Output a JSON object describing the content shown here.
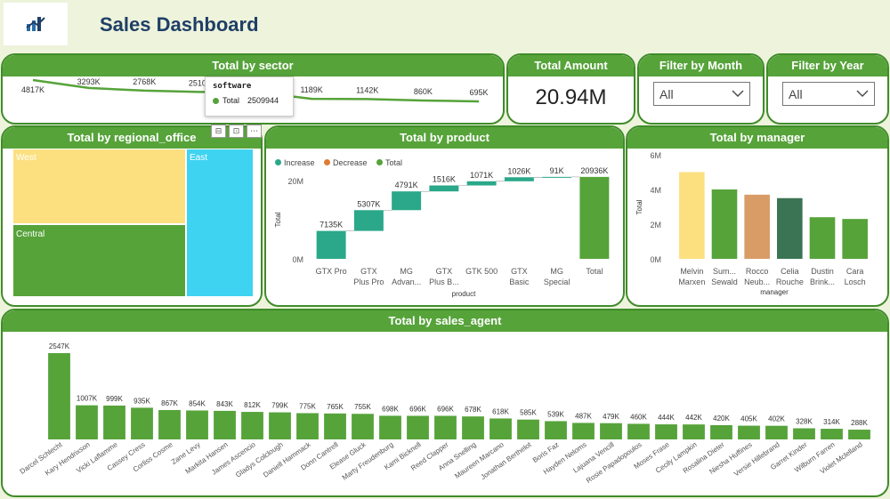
{
  "header": {
    "title": "Sales Dashboard"
  },
  "colors": {
    "green": "#56a33a",
    "teal": "#2aa889",
    "orange": "#e07b33",
    "yellow": "#fce080",
    "cyan": "#3fd3f2",
    "tan": "#d99c67",
    "dark_green": "#3b7454"
  },
  "sector": {
    "title": "Total by sector",
    "values": [
      "4817K",
      "3293K",
      "2768K",
      "2510K",
      "",
      "1189K",
      "1142K",
      "860K",
      "695K"
    ],
    "tooltip": {
      "title": "software",
      "series": "Total",
      "value": "2509944"
    }
  },
  "kpi": {
    "title": "Total Amount",
    "value": "20.94M"
  },
  "filter_month": {
    "title": "Filter by Month",
    "value": "All"
  },
  "filter_year": {
    "title": "Filter by Year",
    "value": "All"
  },
  "regional": {
    "title": "Total by regional_office",
    "west": "West",
    "central": "Central",
    "east": "East",
    "tool_filter": "⊟",
    "tool_focus": "⊡",
    "tool_more": "⋯"
  },
  "product": {
    "title": "Total by product",
    "legend": {
      "increase": "Increase",
      "decrease": "Decrease",
      "total": "Total"
    },
    "xlabel": "product",
    "ylabel": "Total",
    "ticks": [
      "20M",
      "0M"
    ],
    "bars": [
      {
        "l1": "GTX Pro",
        "l2": "",
        "label": "7135K"
      },
      {
        "l1": "GTX",
        "l2": "Plus Pro",
        "label": "5307K"
      },
      {
        "l1": "MG",
        "l2": "Advan...",
        "label": "4791K"
      },
      {
        "l1": "GTX",
        "l2": "Plus B...",
        "label": "1516K"
      },
      {
        "l1": "GTK 500",
        "l2": "",
        "label": "1071K"
      },
      {
        "l1": "GTX",
        "l2": "Basic",
        "label": "1026K"
      },
      {
        "l1": "MG",
        "l2": "Special",
        "label": "91K"
      },
      {
        "l1": "Total",
        "l2": "",
        "label": "20936K"
      }
    ]
  },
  "manager": {
    "title": "Total by manager",
    "xlabel": "manager",
    "ylabel": "Total",
    "ticks": [
      "6M",
      "4M",
      "2M",
      "0M"
    ],
    "bars": [
      {
        "l1": "Melvin",
        "l2": "Marxen"
      },
      {
        "l1": "Sum...",
        "l2": "Sewald"
      },
      {
        "l1": "Rocco",
        "l2": "Neub..."
      },
      {
        "l1": "Celia",
        "l2": "Rouche"
      },
      {
        "l1": "Dustin",
        "l2": "Brink..."
      },
      {
        "l1": "Cara",
        "l2": "Losch"
      }
    ]
  },
  "agent": {
    "title": "Total by sales_agent",
    "names": [
      "Darcel Schlecht",
      "Kary Hendrixson",
      "Vicki Laflamme",
      "Cassey Cress",
      "Corliss Cosme",
      "Zane Levy",
      "Markita Hansen",
      "James Ascencio",
      "Gladys Colclough",
      "Daniell Hammack",
      "Donn Cantrell",
      "Elease Gluck",
      "Marty Freudenburg",
      "Kami Bicknell",
      "Reed Clapper",
      "Anna Snelling",
      "Maureen Marcano",
      "Jonathan Berthelot",
      "Boris Faz",
      "Hayden Neloms",
      "Lajuana Vencill",
      "Rosie Papadopoulos",
      "Moses Frase",
      "Cecily Lampkin",
      "Rosalina Dieter",
      "Niesha Huffines",
      "Versie Hillebrand",
      "Garret Kinder",
      "Wilburn Farren",
      "Violet Mclelland"
    ],
    "labels": [
      "2547K",
      "1007K",
      "999K",
      "935K",
      "867K",
      "854K",
      "843K",
      "812K",
      "799K",
      "775K",
      "765K",
      "755K",
      "698K",
      "696K",
      "696K",
      "678K",
      "618K",
      "585K",
      "539K",
      "487K",
      "479K",
      "460K",
      "444K",
      "442K",
      "420K",
      "405K",
      "402K",
      "328K",
      "314K",
      "288K"
    ]
  },
  "chart_data": [
    {
      "type": "line",
      "title": "Total by sector",
      "x": [
        "",
        "",
        "",
        "",
        "software",
        "",
        "",
        "",
        ""
      ],
      "series": [
        {
          "values": [
            4817,
            3293,
            2768,
            2510,
            2510,
            1189,
            1142,
            860,
            695
          ]
        }
      ]
    },
    {
      "type": "bar",
      "title": "Total by product",
      "xlabel": "product",
      "ylabel": "Total",
      "categories": [
        "GTX Pro",
        "GTX Plus Pro",
        "MG Advan...",
        "GTX Plus B...",
        "GTK 500",
        "GTX Basic",
        "MG Special",
        "Total"
      ],
      "values": [
        7135,
        5307,
        4791,
        1516,
        1071,
        1026,
        91,
        20936
      ],
      "ylim": [
        0,
        25000
      ]
    },
    {
      "type": "bar",
      "title": "Total by manager",
      "xlabel": "manager",
      "ylabel": "Total",
      "categories": [
        "Melvin Marxen",
        "Sum... Sewald",
        "Rocco Neub...",
        "Celia Rouche",
        "Dustin Brink...",
        "Cara Losch"
      ],
      "values": [
        5000,
        4000,
        3700,
        3500,
        2400,
        2300
      ],
      "ylim": [
        0,
        6000
      ]
    },
    {
      "type": "bar",
      "title": "Total by sales_agent",
      "categories": [
        "Darcel Schlecht",
        "Kary Hendrixson",
        "Vicki Laflamme",
        "Cassey Cress",
        "Corliss Cosme",
        "Zane Levy",
        "Markita Hansen",
        "James Ascencio",
        "Gladys Colclough",
        "Daniell Hammack",
        "Donn Cantrell",
        "Elease Gluck",
        "Marty Freudenburg",
        "Kami Bicknell",
        "Reed Clapper",
        "Anna Snelling",
        "Maureen Marcano",
        "Jonathan Berthelot",
        "Boris Faz",
        "Hayden Neloms",
        "Lajuana Vencill",
        "Rosie Papadopoulos",
        "Moses Frase",
        "Cecily Lampkin",
        "Rosalina Dieter",
        "Niesha Huffines",
        "Versie Hillebrand",
        "Garret Kinder",
        "Wilburn Farren",
        "Violet Mclelland"
      ],
      "values": [
        2547,
        1007,
        999,
        935,
        867,
        854,
        843,
        812,
        799,
        775,
        765,
        755,
        698,
        696,
        696,
        678,
        618,
        585,
        539,
        487,
        479,
        460,
        444,
        442,
        420,
        405,
        402,
        328,
        314,
        288
      ]
    }
  ]
}
